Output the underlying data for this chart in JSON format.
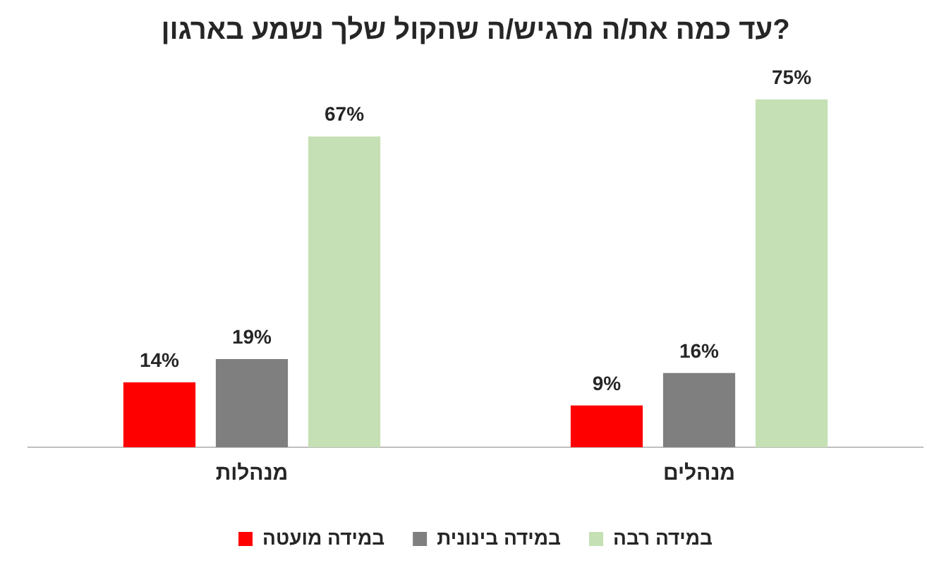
{
  "chart_data": {
    "type": "bar",
    "title": "עד כמה את/ה מרגיש/ה שהקול שלך נשמע בארגון?",
    "categories": [
      "מנהלות",
      "מנהלים"
    ],
    "series": [
      {
        "name": "במידה מועטה",
        "color": "#ff0000",
        "values": [
          14,
          9
        ],
        "value_labels": [
          "14%",
          "9%"
        ]
      },
      {
        "name": "במידה בינונית",
        "color": "#7f7f7f",
        "values": [
          19,
          16
        ],
        "value_labels": [
          "19%",
          "16%"
        ]
      },
      {
        "name": "במידה רבה",
        "color": "#c5e0b4",
        "values": [
          67,
          75
        ],
        "value_labels": [
          "67%",
          "75%"
        ]
      }
    ],
    "legend": "bottom"
  }
}
